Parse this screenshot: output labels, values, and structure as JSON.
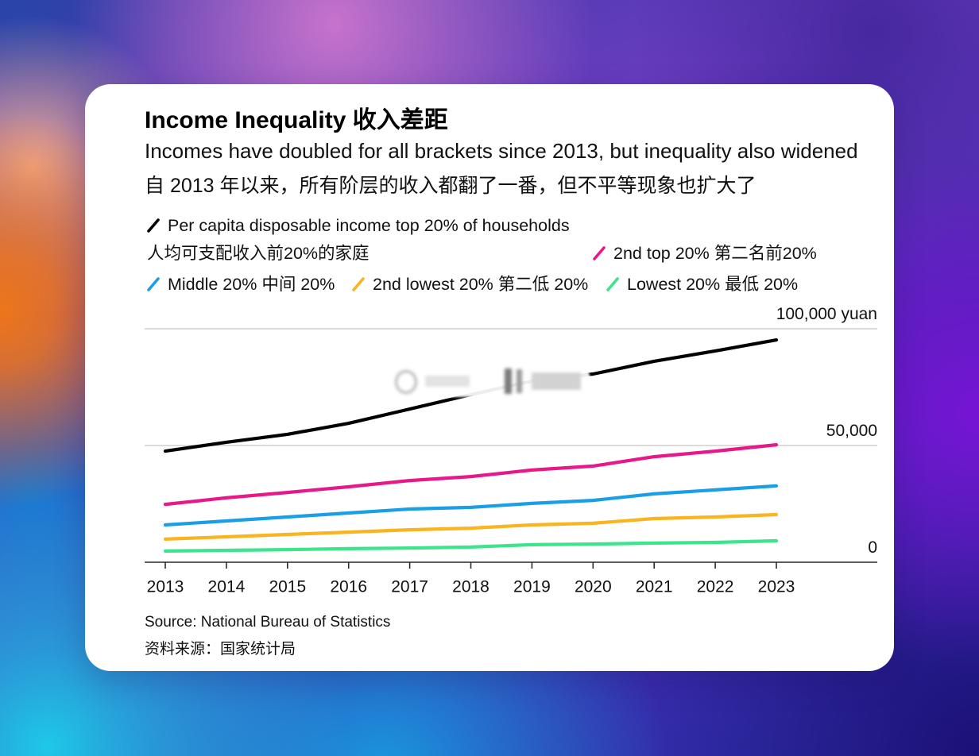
{
  "chart_data": {
    "type": "line",
    "title": "Income Inequality 收入差距",
    "subtitle": "Incomes have doubled for all brackets since 2013, but inequality also widened",
    "subtitle_zh": "自 2013 年以来，所有阶层的收入都翻了一番，但不平等现象也扩大了",
    "x": [
      "2013",
      "2014",
      "2015",
      "2016",
      "2017",
      "2018",
      "2019",
      "2020",
      "2021",
      "2022",
      "2023"
    ],
    "ylim": [
      0,
      100000
    ],
    "y_ticks": [
      {
        "value": 100000,
        "label": "100,000 yuan"
      },
      {
        "value": 50000,
        "label": "50,000"
      },
      {
        "value": 0,
        "label": "0"
      }
    ],
    "grid": true,
    "legend_position": "top-left",
    "series": [
      {
        "name": "Per capita disposable income top 20% of households",
        "name_zh": "人均可支配收入前20%的家庭",
        "color": "#000000",
        "values": [
          47600,
          51400,
          54800,
          59500,
          65600,
          71800,
          77600,
          80600,
          86100,
          90500,
          95200
        ]
      },
      {
        "name": "2nd top 20%",
        "name_zh": "第二名前20%",
        "color": "#e8178a",
        "values": [
          24800,
          27600,
          29900,
          32300,
          35000,
          36700,
          39500,
          41200,
          45200,
          47600,
          50300
        ]
      },
      {
        "name": "Middle 20%",
        "name_zh": "中间 20%",
        "color": "#1a9fe6",
        "values": [
          16000,
          17700,
          19400,
          21100,
          22800,
          23500,
          25200,
          26500,
          29300,
          31000,
          32700
        ]
      },
      {
        "name": "2nd lowest 20%",
        "name_zh": "第二低 20%",
        "color": "#f9b41f",
        "values": [
          9900,
          10900,
          11900,
          12900,
          13900,
          14600,
          16000,
          16700,
          18700,
          19400,
          20400
        ]
      },
      {
        "name": "Lowest 20%",
        "name_zh": "最低 20%",
        "color": "#3de48b",
        "values": [
          4800,
          5100,
          5400,
          5800,
          6100,
          6500,
          7500,
          7800,
          8200,
          8500,
          9200
        ]
      }
    ]
  },
  "source": {
    "en": "Source: National Bureau of Statistics",
    "zh": "资料来源：国家统计局"
  }
}
